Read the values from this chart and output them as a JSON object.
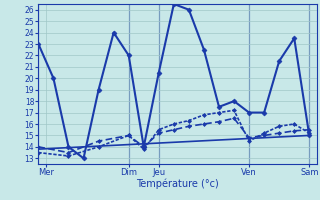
{
  "xlabel": "Température (°c)",
  "background_color": "#c8e8e8",
  "grid_color": "#a0c8c8",
  "line_color": "#1a3aaa",
  "ylim": [
    12.5,
    26.5
  ],
  "y_ticks": [
    13,
    14,
    15,
    16,
    17,
    18,
    19,
    20,
    21,
    22,
    23,
    24,
    25,
    26
  ],
  "x_day_lines": [
    0,
    12,
    16,
    28,
    36
  ],
  "x_tick_positions": [
    1,
    12,
    16,
    28,
    36
  ],
  "x_tick_labels": [
    "Mer",
    "Dim",
    "Jeu",
    "Ven",
    "Sam"
  ],
  "xlim": [
    0,
    37
  ],
  "series": [
    {
      "x": [
        0,
        2,
        4,
        6,
        8,
        10,
        12,
        14,
        16,
        18,
        20,
        22,
        24,
        26,
        28,
        30,
        32,
        34,
        36
      ],
      "y": [
        23,
        20,
        14,
        13,
        19,
        24,
        22,
        14,
        20.5,
        26.5,
        26,
        22.5,
        17.5,
        18,
        17,
        17,
        21.5,
        23.5,
        15
      ],
      "linewidth": 1.5,
      "marker": "D",
      "markersize": 2.5,
      "dashes": null
    },
    {
      "x": [
        0,
        4,
        8,
        12,
        14,
        16,
        18,
        20,
        22,
        24,
        26,
        28,
        30,
        32,
        34,
        36
      ],
      "y": [
        14,
        13.5,
        14.5,
        15,
        14,
        15.2,
        15.5,
        15.8,
        16,
        16.2,
        16.5,
        14.8,
        15,
        15.2,
        15.4,
        15.5
      ],
      "linewidth": 1.2,
      "marker": "D",
      "markersize": 2,
      "dashes": [
        4,
        2
      ]
    },
    {
      "x": [
        0,
        4,
        8,
        12,
        14,
        16,
        18,
        20,
        22,
        24,
        26,
        28,
        30,
        32,
        34,
        36
      ],
      "y": [
        13.5,
        13.2,
        14,
        15,
        13.8,
        15.5,
        16,
        16.3,
        16.8,
        17,
        17.2,
        14.5,
        15.2,
        15.8,
        16,
        15.2
      ],
      "linewidth": 1.2,
      "marker": "D",
      "markersize": 2,
      "dashes": [
        2,
        1
      ]
    },
    {
      "x": [
        0,
        36
      ],
      "y": [
        13.8,
        15.0
      ],
      "linewidth": 1.2,
      "marker": null,
      "markersize": 0,
      "dashes": null
    }
  ]
}
